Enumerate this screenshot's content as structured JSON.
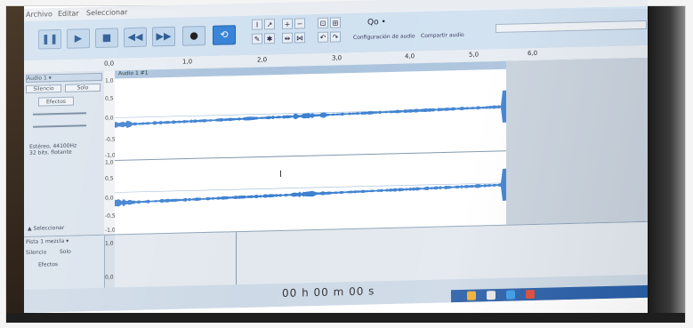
{
  "menubar": {
    "items": [
      "Archivo",
      "Editar",
      "Seleccionar"
    ]
  },
  "toolbar": {
    "audio_setup_value": "Qo •",
    "audio_setup_label": "Configuración de audio",
    "share_audio_label": "Compartir audio"
  },
  "ruler": {
    "ticks": [
      "0,0",
      "1,0",
      "2,0",
      "3,0",
      "4,0",
      "5,0",
      "6,0"
    ]
  },
  "track1": {
    "name": "Audio 1",
    "clip_name": "Audio 1 #1",
    "mute_label": "Silencio",
    "solo_label": "Solo",
    "effects_label": "Efectos",
    "info_line1": "Estéreo, 44100Hz",
    "info_line2": "32 bits. flotante",
    "select_label": "Seleccionar",
    "scale": [
      "1,0",
      "0,5",
      "0,0",
      "-0,5",
      "-1,0",
      "1,0",
      "0,5",
      "0,0",
      "-0,5",
      "-1,0"
    ]
  },
  "track2": {
    "name": "Pista 1 mezcla",
    "mute_label": "Silencio",
    "solo_label": "Solo",
    "effects_label": "Efectos",
    "scale": [
      "1,0",
      "0,0"
    ]
  },
  "statusbar": {
    "timecode": "00 h 00 m 00 s"
  },
  "colors": {
    "waveform": "#3a7fd0",
    "toolbar": "#cfe0f0",
    "loop_button": "#2f7fd6",
    "taskbar": "#2a5fa8"
  }
}
